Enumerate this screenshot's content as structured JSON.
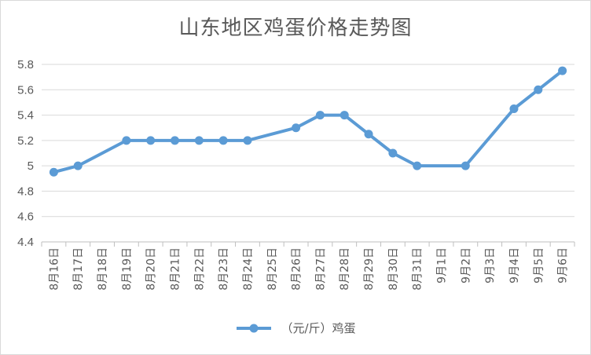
{
  "chart_data": {
    "type": "line",
    "title": "山东地区鸡蛋价格走势图",
    "categories": [
      "8月16日",
      "8月17日",
      "8月18日",
      "8月19日",
      "8月20日",
      "8月21日",
      "8月22日",
      "8月23日",
      "8月24日",
      "8月25日",
      "8月26日",
      "8月27日",
      "8月28日",
      "8月29日",
      "8月30日",
      "8月31日",
      "9月1日",
      "9月2日",
      "9月3日",
      "9月4日",
      "9月5日",
      "9月6日"
    ],
    "series": [
      {
        "name": "（元/斤）鸡蛋",
        "values": [
          4.95,
          5.0,
          null,
          5.2,
          5.2,
          5.2,
          5.2,
          5.2,
          5.2,
          null,
          5.3,
          5.4,
          5.4,
          5.25,
          5.1,
          5.0,
          null,
          5.0,
          null,
          5.45,
          5.6,
          5.75
        ]
      }
    ],
    "yticks": [
      "4.4",
      "4.6",
      "4.8",
      "5",
      "5.2",
      "5.4",
      "5.6",
      "5.8"
    ],
    "ylim": [
      4.4,
      5.8
    ],
    "grid": true,
    "legend_position": "bottom",
    "line_color": "#5b9bd5"
  }
}
